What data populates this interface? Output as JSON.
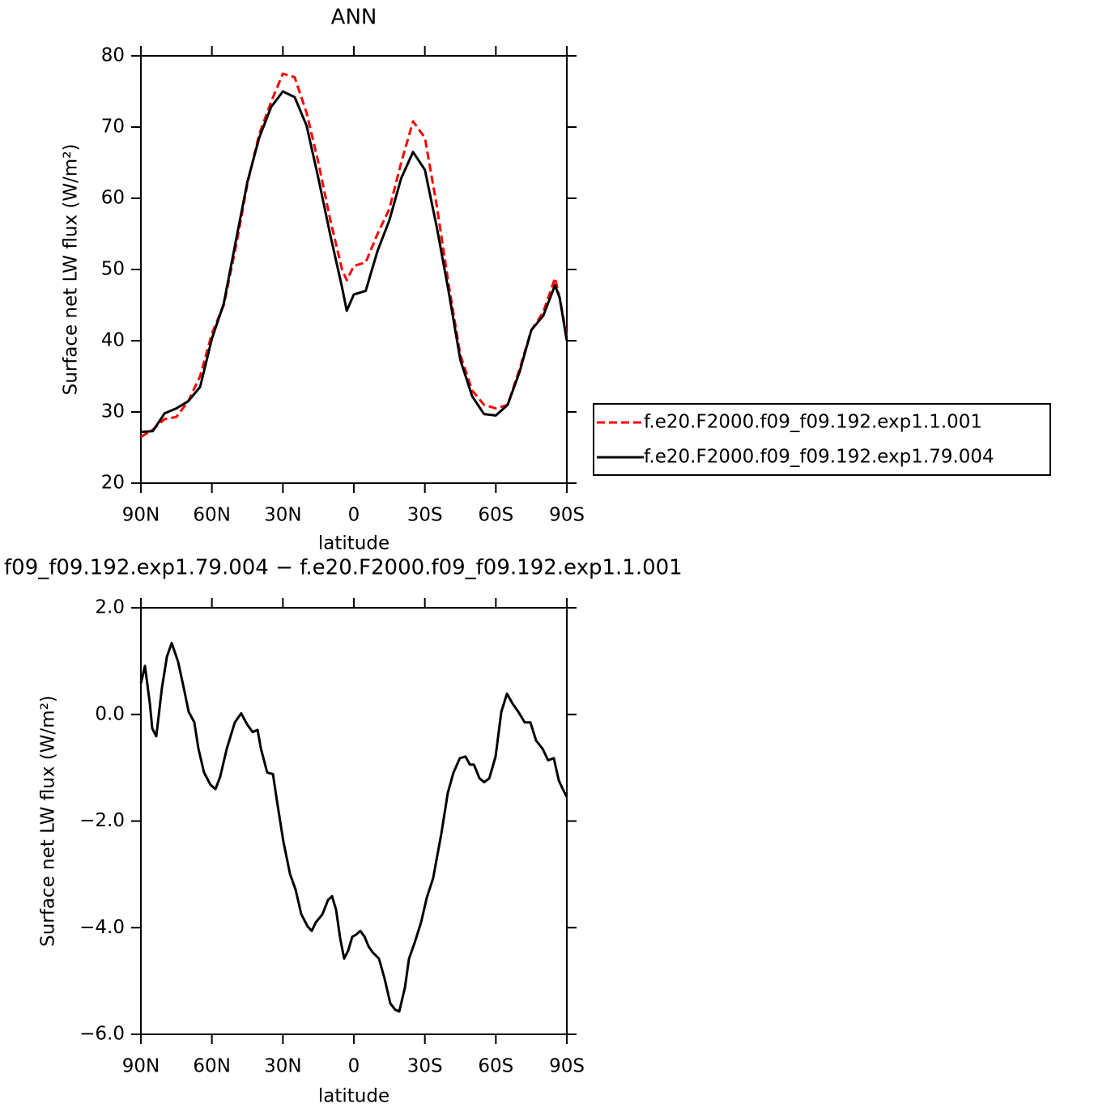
{
  "chart_data": [
    {
      "type": "line",
      "title": "ANN",
      "x_label": "latitude",
      "y_label": "Surface net LW flux (W/m²)",
      "x": [
        90,
        85,
        80,
        75,
        70,
        65,
        60,
        55,
        50,
        45,
        40,
        35,
        30,
        25,
        20,
        15,
        10,
        5,
        3,
        0,
        -5,
        -10,
        -15,
        -20,
        -25,
        -30,
        -35,
        -40,
        -45,
        -50,
        -55,
        -60,
        -65,
        -70,
        -75,
        -80,
        -85,
        -87,
        -90
      ],
      "xlim": [
        90,
        -90
      ],
      "xticks": [
        {
          "value": 90,
          "label": "90N"
        },
        {
          "value": 60,
          "label": "60N"
        },
        {
          "value": 30,
          "label": "30N"
        },
        0,
        {
          "value": -30,
          "label": "30S"
        },
        {
          "value": -60,
          "label": "60S"
        },
        {
          "value": -90,
          "label": "90S"
        }
      ],
      "ylim": [
        20,
        80
      ],
      "yticks": [
        20,
        30,
        40,
        50,
        60,
        70,
        80
      ],
      "legend": "right",
      "series": [
        {
          "name": "f.e20.F2000.f09_f09.192.exp1.1.001",
          "color": "#ff0000",
          "line_style": "dashed",
          "values": [
            26.5,
            27.5,
            29,
            29.3,
            31.5,
            35,
            41,
            45,
            53,
            62,
            69,
            73.5,
            77.5,
            77,
            72,
            65,
            57,
            50,
            48.5,
            50.5,
            51,
            55,
            58.5,
            65,
            70.8,
            68.5,
            59,
            48,
            38,
            33,
            31,
            30.5,
            31,
            36,
            41.5,
            44,
            48.8,
            46,
            40.5
          ]
        },
        {
          "name": "f.e20.F2000.f09_f09.192.exp1.79.004",
          "color": "#000000",
          "line_style": "solid",
          "values": [
            27.2,
            27.3,
            29.8,
            30.5,
            31.5,
            33.5,
            40.3,
            45.2,
            53.8,
            62.3,
            68.5,
            72.8,
            75,
            74.2,
            70.2,
            62.8,
            54.9,
            47.5,
            44.2,
            46.5,
            47,
            52.6,
            56.9,
            62.8,
            66.5,
            64,
            56,
            47,
            37.3,
            32.2,
            29.7,
            29.5,
            31,
            35.6,
            41.5,
            43.5,
            47.8,
            46,
            40
          ]
        }
      ]
    },
    {
      "type": "line",
      "title": "f09_f09.192.exp1.79.004 − f.e20.F2000.f09_f09.192.exp1.1.001",
      "x_label": "latitude",
      "y_label": "Surface net LW flux (W/m²)",
      "x": [
        90,
        88.3,
        86.2,
        85.2,
        83.5,
        81.1,
        79,
        77,
        74.3,
        71.9,
        69.8,
        67.4,
        65.7,
        63.3,
        60.6,
        58.5,
        56.5,
        53.7,
        50.3,
        47.6,
        45.2,
        42.8,
        40.7,
        39.3,
        36.6,
        34.2,
        32.5,
        29.8,
        27,
        24.6,
        22.2,
        19.5,
        17.8,
        16.1,
        13.3,
        10.9,
        9.2,
        7.5,
        5.8,
        4.1,
        2.4,
        0.7,
        -1,
        -2.7,
        -4.5,
        -6.2,
        -7.9,
        -10.6,
        -13,
        -15.4,
        -17.5,
        -19.2,
        -21.6,
        -23.3,
        -25.7,
        -28.4,
        -30.8,
        -33.5,
        -37,
        -39.7,
        -42.1,
        -44.8,
        -47.2,
        -49,
        -50.7,
        -53.1,
        -55.1,
        -57.2,
        -59.9,
        -62.3,
        -64.7,
        -67.1,
        -69.5,
        -72.2,
        -74.6,
        -77,
        -79.7,
        -82.1,
        -84.5,
        -86.6,
        -88.3,
        -90
      ],
      "xlim": [
        90,
        -90
      ],
      "xticks": [
        {
          "value": 90,
          "label": "90N"
        },
        {
          "value": 60,
          "label": "60N"
        },
        {
          "value": 30,
          "label": "30N"
        },
        0,
        {
          "value": -30,
          "label": "30S"
        },
        {
          "value": -60,
          "label": "60S"
        },
        {
          "value": -90,
          "label": "90S"
        }
      ],
      "ylim": [
        -6,
        2
      ],
      "yticks": [
        {
          "value": -6,
          "label": "−6.0"
        },
        {
          "value": -4,
          "label": "−4.0"
        },
        {
          "value": -2,
          "label": "−2.0"
        },
        {
          "value": 0,
          "label": "0.0"
        },
        {
          "value": 2,
          "label": "2.0"
        }
      ],
      "series": [
        {
          "color": "#000000",
          "line_style": "solid",
          "values": [
            0.58,
            0.91,
            0.2,
            -0.26,
            -0.41,
            0.5,
            1.08,
            1.34,
            0.99,
            0.5,
            0.05,
            -0.15,
            -0.64,
            -1.09,
            -1.32,
            -1.4,
            -1.17,
            -0.64,
            -0.15,
            0.02,
            -0.18,
            -0.33,
            -0.29,
            -0.64,
            -1.09,
            -1.12,
            -1.62,
            -2.38,
            -2.99,
            -3.29,
            -3.75,
            -3.98,
            -4.06,
            -3.9,
            -3.75,
            -3.48,
            -3.41,
            -3.67,
            -4.2,
            -4.58,
            -4.43,
            -4.17,
            -4.13,
            -4.06,
            -4.17,
            -4.35,
            -4.46,
            -4.58,
            -4.96,
            -5.42,
            -5.54,
            -5.57,
            -5.12,
            -4.58,
            -4.28,
            -3.9,
            -3.44,
            -3.07,
            -2.23,
            -1.47,
            -1.09,
            -0.82,
            -0.79,
            -0.94,
            -0.94,
            -1.2,
            -1.27,
            -1.2,
            -0.79,
            0.05,
            0.39,
            0.2,
            0.05,
            -0.15,
            -0.15,
            -0.49,
            -0.64,
            -0.86,
            -0.82,
            -1.24,
            -1.4,
            -1.55
          ]
        }
      ]
    }
  ]
}
